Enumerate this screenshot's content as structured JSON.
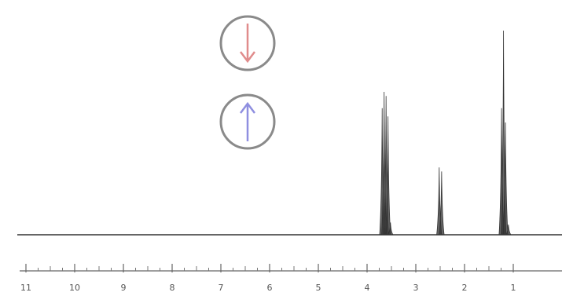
{
  "chart_data": {
    "type": "line",
    "title": "",
    "xlabel": "",
    "ylabel": "",
    "x_reversed": true,
    "xlim": [
      11,
      0.8
    ],
    "ylim": [
      0,
      1
    ],
    "x_ticks": [
      11,
      10,
      9,
      8,
      7,
      6,
      5,
      4,
      3,
      2,
      1
    ],
    "x_tick_labels": [
      "11",
      "10",
      "9",
      "8",
      "7",
      "6",
      "5",
      "4",
      "3",
      "2",
      "1"
    ],
    "peaks": [
      {
        "shift": 3.69,
        "height": 0.62
      },
      {
        "shift": 3.65,
        "height": 0.7
      },
      {
        "shift": 3.61,
        "height": 0.68
      },
      {
        "shift": 3.57,
        "height": 0.58
      },
      {
        "shift": 3.52,
        "height": 0.06
      },
      {
        "shift": 2.52,
        "height": 0.33
      },
      {
        "shift": 2.47,
        "height": 0.31
      },
      {
        "shift": 1.24,
        "height": 0.62
      },
      {
        "shift": 1.2,
        "height": 1.0
      },
      {
        "shift": 1.16,
        "height": 0.55
      },
      {
        "shift": 1.1,
        "height": 0.05
      }
    ],
    "grid": false,
    "legend": "none"
  },
  "annotations": {
    "spin_down": {
      "icon": "down-arrow-icon",
      "color": "#e08c8c"
    },
    "spin_up": {
      "icon": "up-arrow-icon",
      "color": "#8f8fe0"
    },
    "circle_color": "#8a8a8a",
    "spectrum_color": "#333333"
  }
}
